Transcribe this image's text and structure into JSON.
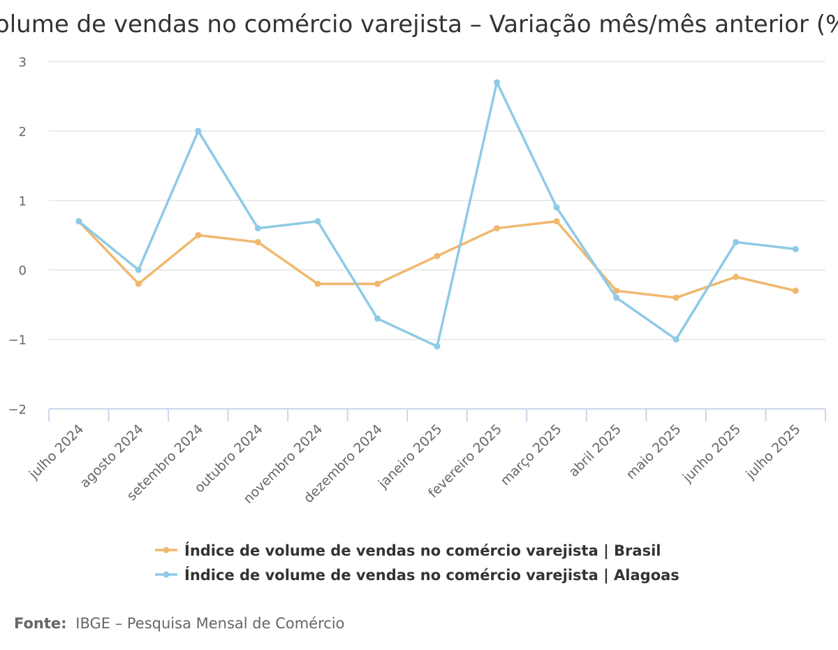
{
  "chart_data": {
    "type": "line",
    "title": "Volume de vendas no comércio varejista – Variação mês/mês anterior (%)",
    "categories": [
      "julho 2024",
      "agosto 2024",
      "setembro 2024",
      "outubro 2024",
      "novembro 2024",
      "dezembro 2024",
      "janeiro 2025",
      "fevereiro 2025",
      "março 2025",
      "abril 2025",
      "maio 2025",
      "junho 2025",
      "julho 2025"
    ],
    "ylim": [
      -2,
      3
    ],
    "yticks": [
      -2,
      -1,
      0,
      1,
      2,
      3
    ],
    "ytick_labels": [
      "−2",
      "−1",
      "0",
      "1",
      "2",
      "3"
    ],
    "grid": true,
    "legend_position": "bottom",
    "series": [
      {
        "name": "Índice de volume de vendas no comércio varejista | Brasil",
        "color": "#f0b86e",
        "values": [
          0.7,
          -0.2,
          0.5,
          0.4,
          -0.2,
          -0.2,
          0.2,
          0.6,
          0.7,
          -0.3,
          -0.4,
          -0.1,
          -0.3
        ]
      },
      {
        "name": "Índice de volume de vendas no comércio varejista | Alagoas",
        "color": "#8ecae6",
        "values": [
          0.7,
          0.0,
          2.0,
          0.6,
          0.7,
          -0.7,
          -1.1,
          2.7,
          0.9,
          -0.4,
          -1.0,
          0.4,
          0.3
        ]
      }
    ]
  },
  "source": {
    "label": "Fonte:",
    "text": "IBGE – Pesquisa Mensal de Comércio"
  }
}
